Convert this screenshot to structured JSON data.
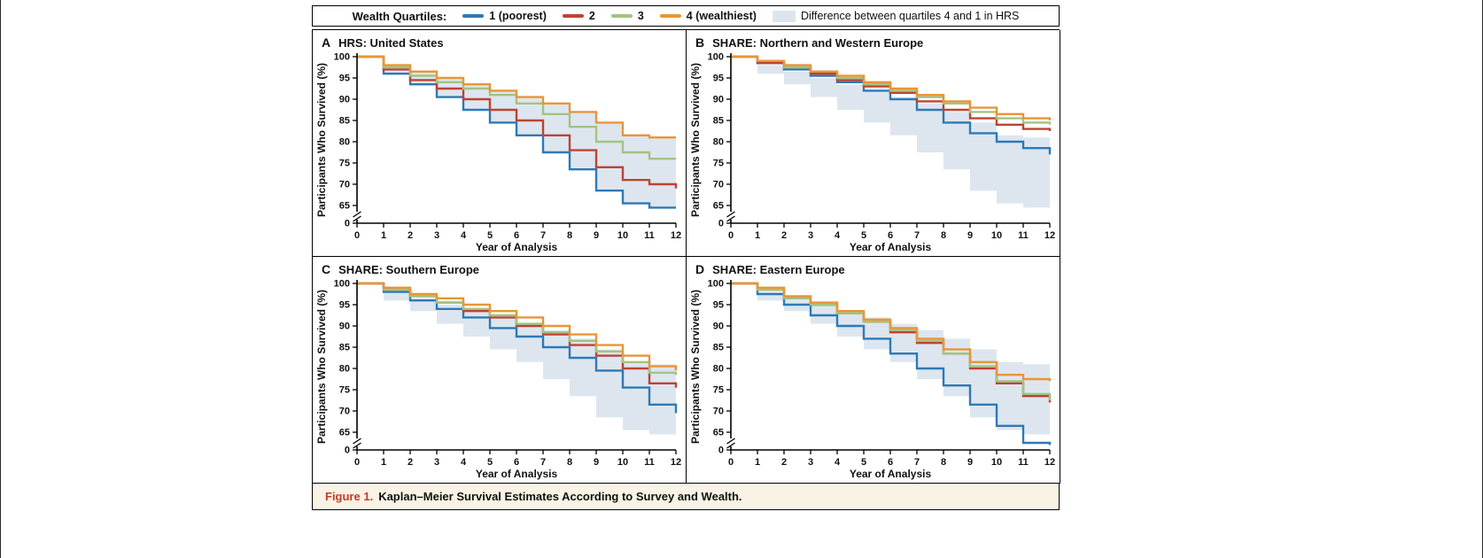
{
  "legend": {
    "title": "Wealth Quartiles:",
    "items": [
      {
        "label": "1 (poorest)",
        "color": "#2e79b5",
        "swatch": "line"
      },
      {
        "label": "2",
        "color": "#bf4233",
        "swatch": "line"
      },
      {
        "label": "3",
        "color": "#a2c383",
        "swatch": "line"
      },
      {
        "label": "4 (wealthiest)",
        "color": "#e99537",
        "swatch": "line"
      },
      {
        "label": "Difference between quartiles 4 and 1 in HRS",
        "color": "#dde6ef",
        "swatch": "area"
      }
    ]
  },
  "caption": {
    "label": "Figure 1.",
    "text": "Kaplan–Meier Survival Estimates According to Survey and Wealth.",
    "label_color": "#c53b28",
    "bg": "#f8f3e5"
  },
  "chart_data": [
    {
      "type": "line",
      "subtype": "kaplan-meier-step",
      "panel": "A",
      "title": "HRS: United States",
      "xlabel": "Year of Analysis",
      "ylabel": "Participants Who Survived (%)",
      "xlim": [
        0,
        12
      ],
      "ylim": [
        65,
        100
      ],
      "axis_break": true,
      "grid": false,
      "xticks": [
        0,
        1,
        2,
        3,
        4,
        5,
        6,
        7,
        8,
        9,
        10,
        11,
        12
      ],
      "yticks": [
        0,
        65,
        70,
        75,
        80,
        85,
        90,
        95,
        100
      ],
      "series": [
        {
          "name": "1 (poorest)",
          "color": "#2e79b5",
          "values": [
            100,
            96,
            93.5,
            90.5,
            87.5,
            84.5,
            81.5,
            77.5,
            73.5,
            68.5,
            65.5,
            64.5,
            64.5
          ]
        },
        {
          "name": "2",
          "color": "#bf4233",
          "values": [
            100,
            97,
            94.5,
            92.5,
            90,
            87.5,
            85,
            81.5,
            78,
            74,
            71,
            70,
            69
          ]
        },
        {
          "name": "3",
          "color": "#a2c383",
          "values": [
            100,
            97.5,
            95.5,
            94,
            92.5,
            91,
            89,
            86.5,
            83.5,
            80,
            77.5,
            76,
            76
          ]
        },
        {
          "name": "4 (wealthiest)",
          "color": "#e99537",
          "values": [
            100,
            98,
            96.5,
            95,
            93.5,
            92,
            90.5,
            89,
            87,
            84.5,
            81.5,
            81,
            81
          ]
        }
      ],
      "band": {
        "name": "Difference between quartiles 4 and 1 in HRS",
        "color": "#dde6ef",
        "upper": [
          100,
          98,
          96.5,
          95,
          93.5,
          92,
          90.5,
          89,
          87,
          84.5,
          81.5,
          81,
          81
        ],
        "lower": [
          100,
          96,
          93.5,
          90.5,
          87.5,
          84.5,
          81.5,
          77.5,
          73.5,
          68.5,
          65.5,
          64.5,
          64.5
        ]
      }
    },
    {
      "type": "line",
      "subtype": "kaplan-meier-step",
      "panel": "B",
      "title": "SHARE: Northern and Western Europe",
      "xlabel": "Year of Analysis",
      "ylabel": "Participants Who Survived (%)",
      "xlim": [
        0,
        12
      ],
      "ylim": [
        65,
        100
      ],
      "axis_break": true,
      "grid": false,
      "xticks": [
        0,
        1,
        2,
        3,
        4,
        5,
        6,
        7,
        8,
        9,
        10,
        11,
        12
      ],
      "yticks": [
        0,
        65,
        70,
        75,
        80,
        85,
        90,
        95,
        100
      ],
      "series": [
        {
          "name": "1 (poorest)",
          "color": "#2e79b5",
          "values": [
            100,
            98.5,
            97,
            95.5,
            94,
            92,
            90,
            87.5,
            84.5,
            82,
            80,
            78.5,
            77
          ]
        },
        {
          "name": "2",
          "color": "#bf4233",
          "values": [
            100,
            98.5,
            97.5,
            96,
            94.5,
            93,
            91.5,
            89.5,
            87.5,
            85.5,
            84,
            83,
            82.5
          ]
        },
        {
          "name": "3",
          "color": "#a2c383",
          "values": [
            100,
            99,
            97.5,
            96.5,
            95,
            93.5,
            92,
            90.5,
            89,
            87,
            85.5,
            84.5,
            84
          ]
        },
        {
          "name": "4 (wealthiest)",
          "color": "#e99537",
          "values": [
            100,
            99,
            98,
            96.5,
            95.5,
            94,
            92.5,
            91,
            89.5,
            88,
            86.5,
            85.5,
            85
          ]
        }
      ],
      "band": {
        "name": "Difference between quartiles 4 and 1 in HRS",
        "color": "#dde6ef",
        "upper": [
          100,
          98,
          96.5,
          95,
          93.5,
          92,
          90.5,
          89,
          87,
          84.5,
          81.5,
          81,
          81
        ],
        "lower": [
          100,
          96,
          93.5,
          90.5,
          87.5,
          84.5,
          81.5,
          77.5,
          73.5,
          68.5,
          65.5,
          64.5,
          64.5
        ]
      }
    },
    {
      "type": "line",
      "subtype": "kaplan-meier-step",
      "panel": "C",
      "title": "SHARE: Southern Europe",
      "xlabel": "Year of Analysis",
      "ylabel": "Participants Who Survived (%)",
      "xlim": [
        0,
        12
      ],
      "ylim": [
        65,
        100
      ],
      "axis_break": true,
      "grid": false,
      "xticks": [
        0,
        1,
        2,
        3,
        4,
        5,
        6,
        7,
        8,
        9,
        10,
        11,
        12
      ],
      "yticks": [
        0,
        65,
        70,
        75,
        80,
        85,
        90,
        95,
        100
      ],
      "series": [
        {
          "name": "1 (poorest)",
          "color": "#2e79b5",
          "values": [
            100,
            98,
            96,
            94,
            92,
            89.5,
            87.5,
            85,
            82.5,
            79.5,
            75.5,
            71.5,
            69.5
          ]
        },
        {
          "name": "2",
          "color": "#bf4233",
          "values": [
            100,
            98.5,
            97,
            95.5,
            93.5,
            92,
            90,
            88,
            85.5,
            83,
            80,
            76.5,
            75.5
          ]
        },
        {
          "name": "3",
          "color": "#a2c383",
          "values": [
            100,
            98.5,
            97,
            95.5,
            94,
            92.5,
            90.5,
            88.5,
            86.5,
            84,
            81.5,
            79,
            78.5
          ]
        },
        {
          "name": "4 (wealthiest)",
          "color": "#e99537",
          "values": [
            100,
            99,
            97.5,
            96.5,
            95,
            93.5,
            92,
            90,
            88,
            85.5,
            83,
            80.5,
            79.5
          ]
        }
      ],
      "band": {
        "name": "Difference between quartiles 4 and 1 in HRS",
        "color": "#dde6ef",
        "upper": [
          100,
          98,
          96.5,
          95,
          93.5,
          92,
          90.5,
          89,
          87,
          84.5,
          81.5,
          81,
          81
        ],
        "lower": [
          100,
          96,
          93.5,
          90.5,
          87.5,
          84.5,
          81.5,
          77.5,
          73.5,
          68.5,
          65.5,
          64.5,
          64.5
        ]
      }
    },
    {
      "type": "line",
      "subtype": "kaplan-meier-step",
      "panel": "D",
      "title": "SHARE: Eastern Europe",
      "xlabel": "Year of Analysis",
      "ylabel": "Participants Who Survived (%)",
      "xlim": [
        0,
        12
      ],
      "ylim": [
        65,
        100
      ],
      "axis_break": true,
      "grid": false,
      "xticks": [
        0,
        1,
        2,
        3,
        4,
        5,
        6,
        7,
        8,
        9,
        10,
        11,
        12
      ],
      "yticks": [
        0,
        65,
        70,
        75,
        80,
        85,
        90,
        95,
        100
      ],
      "series": [
        {
          "name": "1 (poorest)",
          "color": "#2e79b5",
          "values": [
            100,
            97.5,
            95,
            92.5,
            90,
            87,
            83.5,
            80,
            76,
            71.5,
            66.5,
            62.5,
            62
          ]
        },
        {
          "name": "2",
          "color": "#bf4233",
          "values": [
            100,
            98.5,
            96.5,
            95,
            93,
            91,
            88.5,
            86,
            83.5,
            80,
            76.5,
            73.5,
            72
          ]
        },
        {
          "name": "3",
          "color": "#a2c383",
          "values": [
            100,
            98.5,
            96.5,
            95,
            93,
            91,
            89,
            86.5,
            83.5,
            80.5,
            77,
            74,
            72.5
          ]
        },
        {
          "name": "4 (wealthiest)",
          "color": "#e99537",
          "values": [
            100,
            99,
            97,
            95.5,
            93.5,
            91.5,
            89.5,
            87,
            84.5,
            81.5,
            78.5,
            77.5,
            77
          ]
        }
      ],
      "band": {
        "name": "Difference between quartiles 4 and 1 in HRS",
        "color": "#dde6ef",
        "upper": [
          100,
          98,
          96.5,
          95,
          93.5,
          92,
          90.5,
          89,
          87,
          84.5,
          81.5,
          81,
          81
        ],
        "lower": [
          100,
          96,
          93.5,
          90.5,
          87.5,
          84.5,
          81.5,
          77.5,
          73.5,
          68.5,
          65.5,
          64.5,
          64.5
        ]
      }
    }
  ]
}
